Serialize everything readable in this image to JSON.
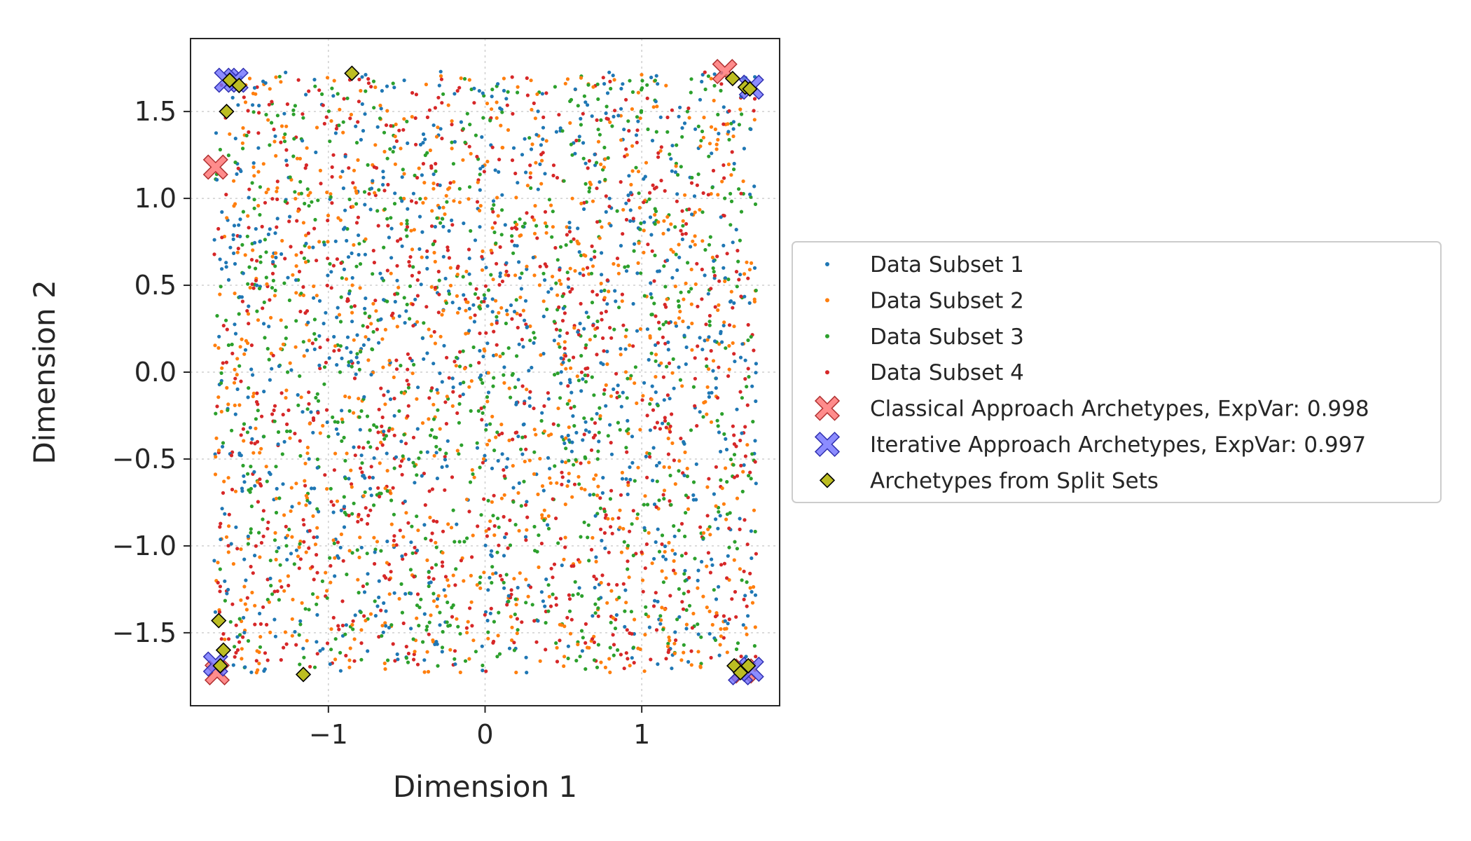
{
  "chart_data": {
    "type": "scatter",
    "xlabel": "Dimension 1",
    "ylabel": "Dimension 2",
    "xlim": [
      -1.88,
      1.88
    ],
    "ylim": [
      -1.92,
      1.92
    ],
    "x_ticks": [
      -1,
      0,
      1
    ],
    "x_tick_labels": [
      "−1",
      "0",
      "1"
    ],
    "y_ticks": [
      -1.5,
      -1.0,
      -0.5,
      0.0,
      0.5,
      1.0,
      1.5
    ],
    "y_tick_labels": [
      "−1.5",
      "−1.0",
      "−0.5",
      "0.0",
      "0.5",
      "1.0",
      "1.5"
    ],
    "grid": true,
    "legend_position": "outside-right",
    "data_range": {
      "x": [
        -1.73,
        1.73
      ],
      "y": [
        -1.73,
        1.73
      ]
    },
    "series": [
      {
        "name": "Data Subset 1",
        "color": "#1f77b4",
        "marker": "dot",
        "count": 900,
        "seed": 11
      },
      {
        "name": "Data Subset 2",
        "color": "#ff7f0e",
        "marker": "dot",
        "count": 900,
        "seed": 23
      },
      {
        "name": "Data Subset 3",
        "color": "#2ca02c",
        "marker": "dot",
        "count": 900,
        "seed": 37
      },
      {
        "name": "Data Subset 4",
        "color": "#d62728",
        "marker": "dot",
        "count": 900,
        "seed": 53
      },
      {
        "name": "Classical Approach Archetypes, ExpVar: 0.998",
        "color": "#ff6f6f",
        "edge_color": "#b03030",
        "marker": "x",
        "points": [
          [
            1.53,
            1.73
          ],
          [
            -1.72,
            1.18
          ],
          [
            -1.71,
            -1.73
          ],
          [
            1.65,
            -1.72
          ]
        ]
      },
      {
        "name": "Iterative Approach Archetypes, ExpVar: 0.997",
        "color": "#6f6fff",
        "edge_color": "#3030b0",
        "marker": "x",
        "points": [
          [
            -1.65,
            1.68
          ],
          [
            -1.59,
            1.68
          ],
          [
            1.7,
            1.64
          ],
          [
            -1.72,
            -1.68
          ],
          [
            1.63,
            -1.73
          ],
          [
            1.7,
            -1.71
          ]
        ]
      },
      {
        "name": "Archetypes from Split Sets",
        "color": "#bcbd22",
        "edge_color": "#000000",
        "marker": "diamond",
        "points": [
          [
            -0.85,
            1.72
          ],
          [
            -1.63,
            1.68
          ],
          [
            -1.57,
            1.65
          ],
          [
            -1.65,
            1.5
          ],
          [
            1.58,
            1.69
          ],
          [
            1.66,
            1.64
          ],
          [
            1.69,
            1.63
          ],
          [
            -1.7,
            -1.43
          ],
          [
            -1.67,
            -1.6
          ],
          [
            -1.69,
            -1.69
          ],
          [
            -1.16,
            -1.74
          ],
          [
            1.59,
            -1.69
          ],
          [
            1.63,
            -1.73
          ],
          [
            1.68,
            -1.69
          ]
        ]
      }
    ]
  }
}
